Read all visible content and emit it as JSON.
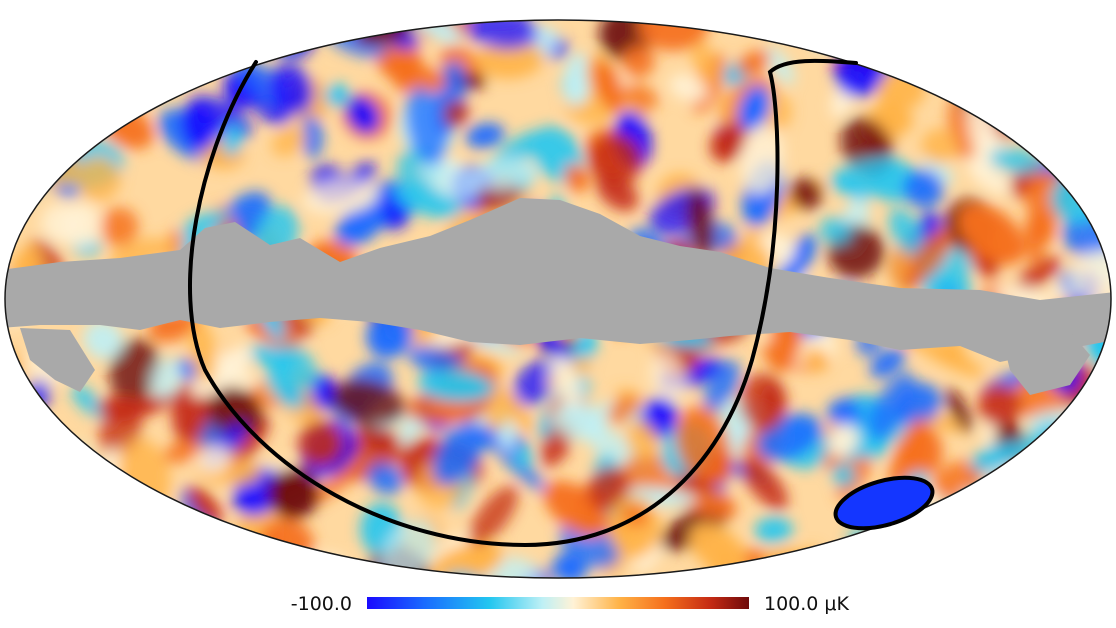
{
  "figure": {
    "type": "all-sky mollweide temperature map",
    "colorbar": {
      "min_label": "-100.0",
      "max_label": "100.0 μK",
      "colors": [
        "#1a0aff",
        "#1a6bff",
        "#22c6f0",
        "#bff0f5",
        "#fff2d6",
        "#ffb347",
        "#f56f1c",
        "#c42a14",
        "#6e0a0a"
      ]
    },
    "mask_color": "#a9a9a9",
    "outline_color": "#000000",
    "background_color": "#ffffff"
  }
}
